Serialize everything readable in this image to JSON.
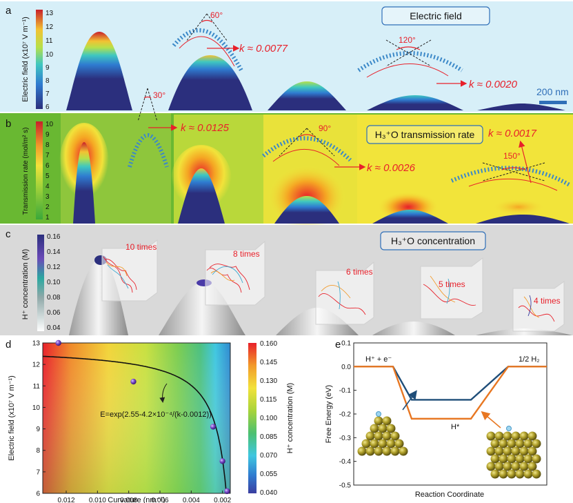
{
  "panel_a": {
    "letter": "a",
    "title": "Electric field",
    "colorbar_label": "Electric field (x10⁷ V m⁻¹)",
    "colorbar_ticks": [
      "13",
      "12",
      "11",
      "10",
      "9",
      "8",
      "7",
      "6"
    ],
    "scale_bar": "200 nm",
    "angles": [
      "60°",
      "120°"
    ],
    "k_labels": [
      "k ≈ 0.0077",
      "k ≈ 0.0020"
    ]
  },
  "panel_b": {
    "letter": "b",
    "title": "H₃⁺O transmission rate",
    "colorbar_label": "Transmission rate (mol/m² s)",
    "colorbar_ticks": [
      "10",
      "9",
      "8",
      "7",
      "6",
      "5",
      "4",
      "3",
      "2",
      "1"
    ],
    "angles": [
      "30°",
      "90°",
      "150°"
    ],
    "k_labels": [
      "k ≈ 0.0125",
      "k ≈ 0.0026",
      "k ≈ 0.0017"
    ]
  },
  "panel_c": {
    "letter": "c",
    "title": "H₃⁺O concentration",
    "colorbar_label": "H⁺ concentration (M)",
    "colorbar_ticks": [
      "0.16",
      "0.14",
      "0.12",
      "0.10",
      "0.08",
      "0.06",
      "0.04"
    ],
    "times": [
      "10 times",
      "8 times",
      "6 times",
      "5 times",
      "4 times"
    ]
  },
  "panel_d": {
    "letter": "d",
    "equation": "E=exp(2.55-4.2×10⁻⁴/(k-0.0012))",
    "xlabel": "Curvature (nm⁻¹)",
    "ylabel": "Electric field (x10⁷ V m⁻¹)",
    "colorbar_label": "H⁺ concentration (M)",
    "colorbar_ticks": [
      "0.160",
      "0.145",
      "0.130",
      "0.115",
      "0.100",
      "0.085",
      "0.070",
      "0.055",
      "0.040"
    ]
  },
  "panel_e": {
    "letter": "e",
    "xlabel": "Reaction Coordinate",
    "ylabel": "Free Energy (eV)",
    "label_left": "H⁺ + e⁻",
    "label_right": "1/2 H₂",
    "label_mid": "H*"
  },
  "colors": {
    "accent_red": "#e8202a",
    "chain_blue": "#3b88c8",
    "tip_navy": "#2b2f7d",
    "panel_bg_a": "#d7eff8",
    "panel_bg_b": "#69b832",
    "panel_bg_c": "#d9d9d9",
    "line_blue": "#1f4e79",
    "line_orange": "#e87722",
    "gold": "#b0a02a"
  },
  "chart_data": [
    {
      "type": "scatter",
      "xlabel": "Curvature (nm⁻¹)",
      "ylabel": "Electric field (x10⁷ V m⁻¹)",
      "xlim": [
        0.0135,
        0.0015
      ],
      "ylim": [
        6,
        13
      ],
      "x_ticks": [
        0.012,
        0.01,
        0.008,
        0.006,
        0.004,
        0.002
      ],
      "y_ticks": [
        6,
        7,
        8,
        9,
        10,
        11,
        12,
        13
      ],
      "points": [
        {
          "x": 0.0125,
          "y": 13.0
        },
        {
          "x": 0.0077,
          "y": 11.2
        },
        {
          "x": 0.0026,
          "y": 9.1
        },
        {
          "x": 0.002,
          "y": 7.5
        },
        {
          "x": 0.0017,
          "y": 6.1
        }
      ],
      "fit": {
        "a": 2.55,
        "b": 0.00042,
        "c": 0.0012
      }
    },
    {
      "type": "line",
      "xlabel": "Reaction Coordinate",
      "ylabel": "Free Energy (eV)",
      "ylim": [
        -0.5,
        0.1
      ],
      "y_ticks": [
        0.1,
        0.0,
        -0.1,
        -0.2,
        -0.3,
        -0.4,
        -0.5
      ],
      "series": [
        {
          "color": "#1f4e79",
          "levels": [
            0.0,
            -0.14,
            0.0
          ]
        },
        {
          "color": "#e87722",
          "levels": [
            0.0,
            -0.22,
            0.0
          ]
        }
      ]
    }
  ]
}
